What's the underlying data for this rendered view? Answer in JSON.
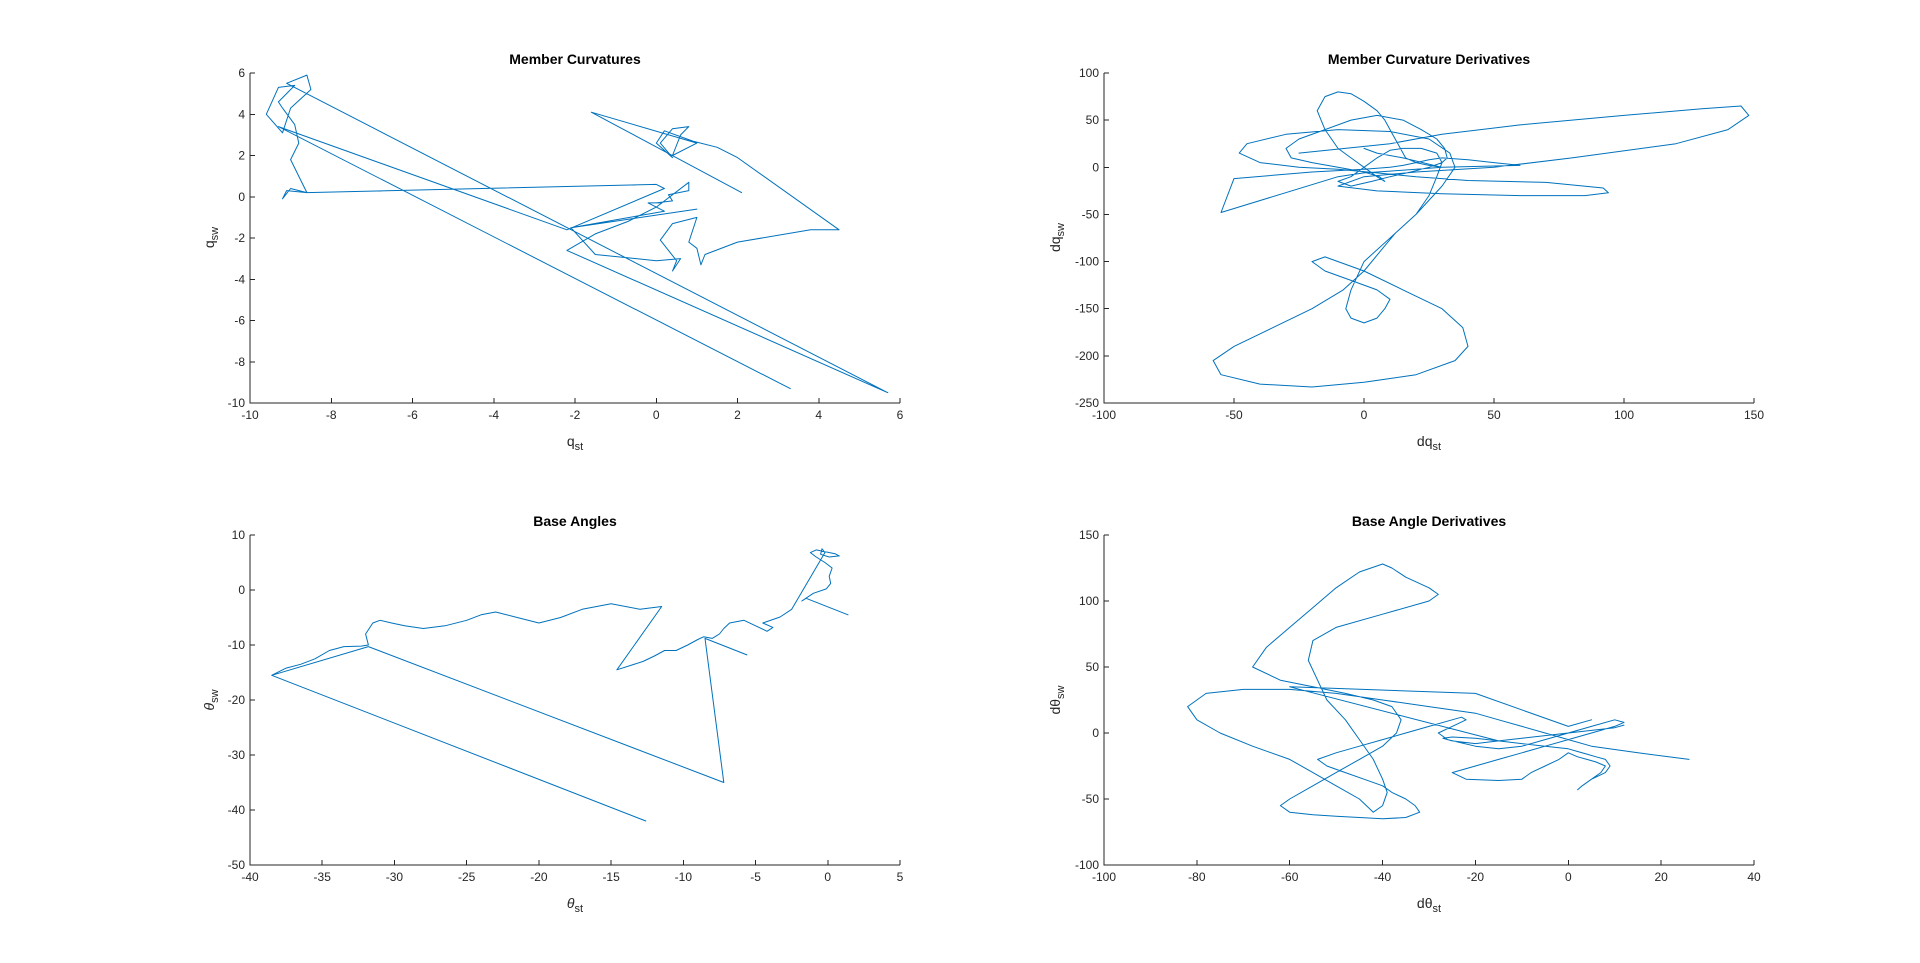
{
  "figure": {
    "background": "#ffffff",
    "line_color": "#0072bd",
    "axis_color": "#262626"
  },
  "chart_data": [
    {
      "type": "line",
      "title": "Member Curvatures",
      "xlabel": {
        "base": "q",
        "sub": "st"
      },
      "ylabel": {
        "base": "q",
        "sub": "sw"
      },
      "xlim": [
        -10,
        6
      ],
      "ylim": [
        -10,
        6
      ],
      "xticks": [
        "-10",
        "-8",
        "-6",
        "-4",
        "-2",
        "0",
        "2",
        "4",
        "6"
      ],
      "yticks": [
        "-10",
        "-8",
        "-6",
        "-4",
        "-2",
        "0",
        "2",
        "4",
        "6"
      ],
      "grid": false,
      "series": [
        {
          "x": [
            2.1,
            -1.6,
            1.0,
            0.4,
            0.6,
            0.8,
            0.4,
            0.1,
            0.4,
            0.0,
            0.2,
            0.9,
            1.5,
            2.0,
            4.5,
            3.8,
            2.0,
            1.2,
            1.1,
            1.0,
            0.8,
            1.0,
            0.4,
            0.1,
            0.5,
            0.4,
            0.6,
            0.0,
            -1.5,
            -2.1,
            1.0,
            -2.1,
            0.2,
            -0.2,
            0.1,
            0.0,
            0.4,
            0.3,
            0.8,
            0.8,
            0.0,
            -0.7,
            -1.5,
            -2.2,
            5.7,
            -9.1,
            -8.6,
            -8.5,
            -9.0,
            -9.2,
            -9.6,
            -9.3,
            -8.9,
            -9.1,
            -9.3,
            -9.2,
            -8.9,
            -8.8,
            -9.0,
            -8.7,
            -8.6,
            -9.1,
            -9.2,
            -9.0,
            -8.6,
            0.0,
            0.2,
            -2.2,
            -9.3,
            3.3
          ],
          "y": [
            0.2,
            4.1,
            2.6,
            2.0,
            3.0,
            3.4,
            3.3,
            2.6,
            1.9,
            2.6,
            3.2,
            2.7,
            2.4,
            1.9,
            -1.6,
            -1.6,
            -2.2,
            -2.8,
            -3.3,
            -2.5,
            -2.2,
            -1.0,
            -1.3,
            -2.1,
            -3.1,
            -3.6,
            -3.0,
            -3.1,
            -2.8,
            -1.5,
            -0.6,
            -1.5,
            -0.7,
            -0.3,
            -0.3,
            -0.3,
            -0.2,
            0.1,
            0.3,
            0.7,
            -0.5,
            -1.2,
            -1.8,
            -2.6,
            -9.5,
            5.5,
            5.9,
            5.2,
            4.3,
            3.1,
            4.0,
            5.3,
            5.4,
            5.0,
            4.6,
            4.3,
            3.5,
            2.6,
            1.8,
            0.6,
            0.2,
            0.3,
            -0.1,
            0.4,
            0.2,
            0.6,
            0.4,
            -1.6,
            3.4,
            -9.3
          ]
        }
      ]
    },
    {
      "type": "line",
      "title": "Member Curvature Derivatives",
      "xlabel": {
        "base": "dq",
        "sub": "st"
      },
      "ylabel": {
        "base": "dq",
        "sub": "sw"
      },
      "xlim": [
        -100,
        150
      ],
      "ylim": [
        -250,
        100
      ],
      "xticks": [
        "-100",
        "-50",
        "0",
        "50",
        "100",
        "150"
      ],
      "yticks": [
        "-250",
        "-200",
        "-150",
        "-100",
        "-50",
        "0",
        "50",
        "100"
      ],
      "grid": false,
      "series": [
        {
          "x": [
            -25,
            10,
            30,
            60,
            100,
            130,
            145,
            148,
            140,
            120,
            80,
            50,
            20,
            0,
            -10,
            5,
            30,
            60,
            85,
            94,
            92,
            70,
            40,
            20,
            5,
            -10,
            -25,
            -40,
            -48,
            -45,
            -30,
            -10,
            10,
            25,
            33,
            35,
            30,
            20,
            0,
            -5,
            -7,
            -5,
            0,
            5,
            8,
            10,
            5,
            -5,
            -15,
            -20,
            -15,
            0,
            15,
            30,
            38,
            40,
            35,
            20,
            0,
            -20,
            -40,
            -55,
            -58,
            -50,
            -35,
            -20,
            -8,
            0,
            6,
            12,
            20,
            25,
            28,
            30,
            28,
            22,
            15,
            10,
            5,
            0,
            -5,
            -10,
            -5,
            3,
            10,
            18,
            25,
            30,
            32,
            31,
            28,
            22,
            15,
            5,
            -5,
            -15,
            -25,
            -30,
            -28,
            -20,
            -10,
            0,
            6,
            8,
            5,
            0,
            -5,
            -10,
            -15,
            -18,
            -15,
            -10,
            -5,
            0,
            5,
            8,
            10,
            12,
            14,
            16,
            20,
            25,
            30,
            20,
            10,
            0,
            -5,
            -10,
            -55,
            -50,
            -20,
            0,
            10,
            15,
            20,
            25,
            30,
            40,
            50,
            60,
            30,
            15,
            5,
            0
          ],
          "y": [
            15,
            25,
            35,
            45,
            55,
            62,
            65,
            55,
            40,
            25,
            10,
            0,
            -5,
            -10,
            -20,
            -25,
            -28,
            -30,
            -30,
            -27,
            -22,
            -16,
            -14,
            -10,
            -6,
            -2,
            0,
            5,
            15,
            25,
            35,
            40,
            38,
            30,
            15,
            0,
            -20,
            -50,
            -100,
            -130,
            -150,
            -160,
            -165,
            -160,
            -150,
            -140,
            -130,
            -120,
            -110,
            -100,
            -95,
            -110,
            -130,
            -150,
            -170,
            -190,
            -205,
            -220,
            -228,
            -233,
            -230,
            -220,
            -205,
            -190,
            -170,
            -150,
            -130,
            -110,
            -90,
            -70,
            -50,
            -30,
            -10,
            5,
            15,
            20,
            20,
            18,
            10,
            0,
            -10,
            -15,
            -20,
            -15,
            -10,
            -5,
            0,
            5,
            10,
            20,
            30,
            40,
            50,
            55,
            50,
            40,
            30,
            20,
            10,
            5,
            0,
            -5,
            -10,
            -15,
            -10,
            0,
            10,
            20,
            40,
            60,
            75,
            80,
            78,
            70,
            60,
            50,
            40,
            30,
            20,
            10,
            5,
            2,
            0,
            -2,
            -4,
            -6,
            -8,
            -10,
            -48,
            -12,
            -5,
            -2,
            0,
            2,
            5,
            8,
            10,
            8,
            5,
            2,
            0,
            10,
            15,
            20
          ]
        }
      ]
    },
    {
      "type": "line",
      "title": "Base Angles",
      "xlabel": {
        "base": "θ",
        "sub": "st"
      },
      "ylabel": {
        "base": "θ",
        "sub": "sw"
      },
      "xlim": [
        -40,
        5
      ],
      "ylim": [
        -50,
        10
      ],
      "xticks": [
        "-40",
        "-35",
        "-30",
        "-25",
        "-20",
        "-15",
        "-10",
        "-5",
        "0",
        "5"
      ],
      "yticks": [
        "-50",
        "-40",
        "-30",
        "-20",
        "-10",
        "0",
        "10"
      ],
      "grid": false,
      "series": [
        {
          "x": [
            1.4,
            -1.5,
            -1.8,
            -1.0,
            -0.1,
            0.2,
            0.1,
            0.3,
            -0.2,
            -0.8,
            -1.2,
            -0.8,
            0.5,
            0.8,
            0.1,
            -0.5,
            -0.4,
            -0.2,
            -2.5,
            -3.3,
            -4.5,
            -3.8,
            -4.2,
            -5.0,
            -5.8,
            -6.8,
            -7.2,
            -7.5,
            -8.0,
            -8.6,
            -9.0,
            -9.7,
            -10.5,
            -11.3,
            -12.0,
            -12.8,
            -14.6,
            -11.5,
            -13.0,
            -15.0,
            -17.0,
            -18.5,
            -20.0,
            -21.5,
            -23.0,
            -24.0,
            -25.0,
            -26.5,
            -28.0,
            -29.3,
            -30.2,
            -31.0,
            -31.5,
            -32.0,
            -31.8,
            -32.3,
            -33.5,
            -34.5,
            -35.5,
            -36.5,
            -37.5,
            -38.5,
            -12.6,
            -38.5,
            -31.8,
            -7.2,
            -8.5,
            -5.6
          ],
          "y": [
            -4.5,
            -1.5,
            -2.0,
            -0.6,
            0.2,
            1.2,
            2.5,
            4.0,
            5.0,
            6.0,
            6.8,
            7.3,
            6.6,
            6.2,
            6.0,
            6.5,
            7.5,
            6.8,
            -3.5,
            -4.9,
            -6.0,
            -6.8,
            -7.5,
            -6.5,
            -5.5,
            -6.0,
            -7.0,
            -8.0,
            -8.8,
            -8.5,
            -9.0,
            -10.0,
            -11.0,
            -11.0,
            -12.0,
            -13.0,
            -14.5,
            -3.0,
            -3.5,
            -2.5,
            -3.5,
            -5.0,
            -6.0,
            -5.0,
            -4.0,
            -4.5,
            -5.5,
            -6.5,
            -7.0,
            -6.5,
            -6.0,
            -5.5,
            -6.0,
            -8.0,
            -10.0,
            -10.2,
            -10.3,
            -11.0,
            -12.5,
            -13.5,
            -14.2,
            -15.5,
            -42.0,
            -15.5,
            -10.3,
            -35.0,
            -8.8,
            -11.8
          ]
        }
      ]
    },
    {
      "type": "line",
      "title": "Base Angle Derivatives",
      "xlabel": {
        "base": "dθ",
        "sub": "st"
      },
      "ylabel": {
        "base": "dθ",
        "sub": "sw"
      },
      "xlim": [
        -100,
        40
      ],
      "ylim": [
        -100,
        150
      ],
      "xticks": [
        "-100",
        "-80",
        "-60",
        "-40",
        "-20",
        "0",
        "20",
        "40"
      ],
      "yticks": [
        "-100",
        "-50",
        "0",
        "50",
        "100",
        "150"
      ],
      "grid": false,
      "series": [
        {
          "x": [
            26,
            15,
            5,
            0,
            -5,
            -10,
            -15,
            -20,
            -30,
            -40,
            -50,
            -60,
            -70,
            -78,
            -82,
            -80,
            -75,
            -68,
            -60,
            -55,
            -50,
            -45,
            -42,
            -40,
            -39,
            -40,
            -42,
            -45,
            -48,
            -52,
            -54,
            -56,
            -55,
            -50,
            -40,
            -30,
            -28,
            -30,
            -35,
            -38,
            -40,
            -45,
            -50,
            -55,
            -60,
            -65,
            -68,
            -62,
            -55,
            -48,
            -42,
            -38,
            -36,
            -37,
            -40,
            -45,
            -50,
            -55,
            -60,
            -62,
            -60,
            -55,
            -50,
            -45,
            -40,
            -35,
            -32,
            -33,
            -35,
            -38,
            -40,
            -44,
            -48,
            -52,
            -54,
            -50,
            -45,
            -40,
            -35,
            -30,
            -25,
            -23,
            -22,
            -25,
            -28,
            -26,
            -20,
            -15,
            -10,
            -5,
            0,
            5,
            10,
            12,
            10,
            5,
            0,
            -5,
            -10,
            -15,
            -20,
            -25,
            -22,
            -15,
            -10,
            -8,
            -5,
            -2,
            0,
            2,
            4,
            6,
            8,
            7,
            5,
            3,
            2,
            3,
            5,
            8,
            9,
            8,
            6,
            4,
            2,
            0,
            -5,
            -10,
            -15,
            -20,
            -25,
            -27,
            -25,
            -20,
            -15,
            -10,
            -5,
            0,
            5,
            10,
            12,
            10,
            5,
            0,
            -5,
            -10,
            -15,
            -60,
            -20,
            0,
            5
          ],
          "y": [
            -20,
            -15,
            -10,
            -5,
            0,
            5,
            10,
            15,
            20,
            25,
            30,
            33,
            33,
            30,
            20,
            10,
            0,
            -10,
            -20,
            -30,
            -40,
            -50,
            -60,
            -55,
            -45,
            -35,
            -20,
            -5,
            10,
            25,
            40,
            55,
            70,
            80,
            90,
            100,
            105,
            110,
            118,
            125,
            128,
            122,
            110,
            95,
            80,
            65,
            50,
            40,
            35,
            30,
            25,
            20,
            10,
            0,
            -10,
            -20,
            -30,
            -40,
            -50,
            -55,
            -60,
            -62,
            -63,
            -64,
            -65,
            -64,
            -60,
            -55,
            -50,
            -45,
            -40,
            -35,
            -30,
            -25,
            -20,
            -15,
            -10,
            -5,
            0,
            5,
            10,
            12,
            10,
            5,
            0,
            -5,
            -10,
            -12,
            -10,
            -5,
            0,
            5,
            10,
            8,
            5,
            0,
            -5,
            -10,
            -15,
            -20,
            -25,
            -30,
            -35,
            -36,
            -35,
            -30,
            -25,
            -20,
            -15,
            -18,
            -20,
            -22,
            -25,
            -30,
            -35,
            -40,
            -43,
            -40,
            -35,
            -30,
            -25,
            -20,
            -18,
            -16,
            -14,
            -12,
            -10,
            -8,
            -6,
            -4,
            -3,
            -4,
            -6,
            -8,
            -6,
            -4,
            -2,
            0,
            2,
            4,
            6,
            4,
            2,
            0,
            -2,
            -4,
            -6,
            35,
            30,
            5,
            10
          ]
        }
      ]
    }
  ]
}
